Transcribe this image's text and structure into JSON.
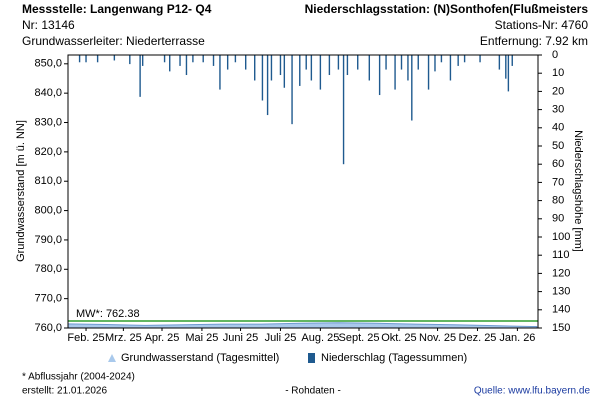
{
  "header": {
    "station": "Messstelle: Langenwang P12- Q4",
    "number": "Nr: 13146",
    "aquifer": "Grundwasserleiter:   Niederterrasse",
    "rain_station": "Niederschlagsstation: (N)Sonthofen(Flußmeisters",
    "rain_number": "Stations-Nr: 4760",
    "distance": "Entfernung: 7.92 km"
  },
  "chart_data": {
    "type": "gw_precip",
    "y_label": "Grundwasserstand [m ü. NN]",
    "y2_label": "Niederschlagshöhe [mm]",
    "xlim": [
      0,
      365
    ],
    "xticks": [
      {
        "value": 14,
        "label": "Feb. 25"
      },
      {
        "value": 43,
        "label": "Mrz. 25"
      },
      {
        "value": 73,
        "label": "Apr. 25"
      },
      {
        "value": 104,
        "label": "Mai 25"
      },
      {
        "value": 134,
        "label": "Juni 25"
      },
      {
        "value": 165,
        "label": "Juli 25"
      },
      {
        "value": 196,
        "label": "Aug. 25"
      },
      {
        "value": 226,
        "label": "Sept. 25"
      },
      {
        "value": 257,
        "label": "Okt. 25"
      },
      {
        "value": 287,
        "label": "Nov. 25"
      },
      {
        "value": 318,
        "label": "Dez. 25"
      },
      {
        "value": 349,
        "label": "Jan. 26"
      }
    ],
    "ylim": [
      760,
      853
    ],
    "yticks": [
      {
        "value": 760,
        "label": "760,0"
      },
      {
        "value": 770,
        "label": "770,0"
      },
      {
        "value": 780,
        "label": "780,0"
      },
      {
        "value": 790,
        "label": "790,0"
      },
      {
        "value": 800,
        "label": "800,0"
      },
      {
        "value": 810,
        "label": "810,0"
      },
      {
        "value": 820,
        "label": "820,0"
      },
      {
        "value": 830,
        "label": "830,0"
      },
      {
        "value": 840,
        "label": "840,0"
      },
      {
        "value": 850,
        "label": "850,0"
      }
    ],
    "y2lim": [
      0,
      150
    ],
    "y2_inverted": true,
    "y2ticks": [
      0,
      10,
      20,
      30,
      40,
      50,
      60,
      70,
      80,
      90,
      100,
      110,
      120,
      130,
      140,
      150
    ],
    "mean": {
      "label": "MW*: 762.38",
      "value": 762.38,
      "color": "#2e9e2e"
    },
    "series": [
      {
        "name": "Grundwasserstand (Tagesmittel)",
        "kind": "area",
        "color": "#a9c9ec",
        "x": [
          0,
          30,
          60,
          90,
          120,
          150,
          180,
          210,
          240,
          270,
          300,
          330,
          360,
          364
        ],
        "values": [
          761.4,
          761.2,
          760.9,
          761.1,
          761.3,
          761.3,
          761.6,
          761.8,
          761.6,
          761.3,
          761.1,
          760.8,
          760.5,
          760.5
        ]
      },
      {
        "name": "Niederschlag (Tagessummen)",
        "kind": "bar",
        "axis": "y2",
        "color": "#1f5a8f",
        "x": [
          9,
          14,
          23,
          36,
          48,
          56,
          58,
          75,
          79,
          87,
          92,
          97,
          105,
          113,
          118,
          124,
          130,
          138,
          145,
          151,
          155,
          158,
          165,
          168,
          174,
          180,
          185,
          189,
          196,
          203,
          210,
          214,
          217,
          225,
          234,
          242,
          247,
          254,
          259,
          264,
          267,
          272,
          280,
          285,
          290,
          297,
          303,
          308,
          320,
          335,
          340,
          342,
          345
        ],
        "values": [
          4,
          4,
          4,
          3,
          5,
          23,
          6,
          4,
          9,
          6,
          11,
          4,
          4,
          6,
          19,
          8,
          4,
          8,
          14,
          25,
          33,
          14,
          11,
          18,
          38,
          17,
          8,
          14,
          19,
          11,
          8,
          60,
          11,
          8,
          14,
          22,
          8,
          19,
          8,
          14,
          36,
          8,
          19,
          9,
          4,
          14,
          6,
          4,
          4,
          8,
          13,
          20,
          6
        ]
      }
    ]
  },
  "footer": {
    "note": "* Abflussjahr (2004-2024)",
    "created": "erstellt:  21.01.2026",
    "raw": "- Rohdaten -",
    "source": "Quelle: www.lfu.bayern.de"
  }
}
